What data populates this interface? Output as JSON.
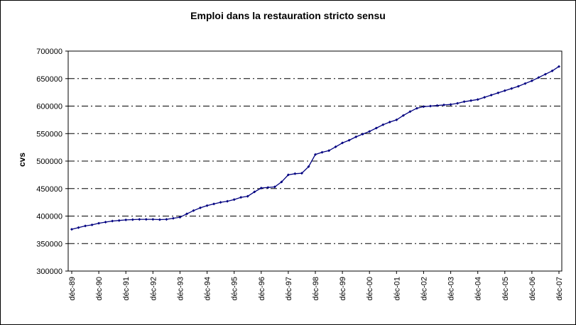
{
  "chart_data": {
    "type": "line",
    "title": "Emploi dans la restauration stricto sensu",
    "ylabel": "cvs",
    "xlabel": "",
    "ylim": [
      300000,
      700000
    ],
    "ytick_step": 50000,
    "ytick_labels": [
      "300000",
      "350000",
      "400000",
      "450000",
      "500000",
      "550000",
      "600000",
      "650000",
      "700000"
    ],
    "grid": "horizontal-dash-dot",
    "legend": "none",
    "line_color": "#000080",
    "marker": "diamond",
    "x_frequency": "quarterly",
    "tick_every": 4,
    "categories": [
      "déc-89",
      "déc-90",
      "déc-91",
      "déc-92",
      "déc-93",
      "déc-94",
      "déc-95",
      "déc-96",
      "déc-97",
      "déc-98",
      "déc-99",
      "déc-00",
      "déc-01",
      "déc-02",
      "déc-03",
      "déc-04",
      "déc-05",
      "déc-06",
      "déc-07"
    ],
    "values": [
      376000,
      379000,
      382000,
      384000,
      387000,
      389000,
      391000,
      392000,
      393000,
      393500,
      394000,
      394000,
      394000,
      393500,
      394000,
      396000,
      398000,
      404000,
      410000,
      415000,
      419000,
      422000,
      425000,
      427000,
      430000,
      434000,
      436000,
      444000,
      451000,
      452000,
      453000,
      462000,
      475000,
      477000,
      478000,
      490000,
      512000,
      516000,
      519000,
      526000,
      533000,
      538000,
      544000,
      549000,
      554000,
      560000,
      566000,
      571000,
      575000,
      583000,
      590000,
      596000,
      599000,
      600000,
      601000,
      602000,
      603000,
      605000,
      608000,
      610000,
      612000,
      616000,
      620000,
      624000,
      628000,
      632000,
      636000,
      641000,
      646000,
      652000,
      658000,
      664000,
      672000
    ]
  }
}
